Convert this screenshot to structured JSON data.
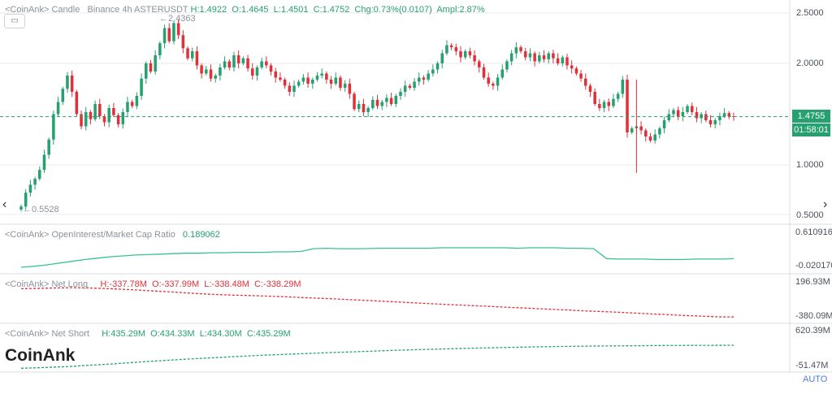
{
  "candle_header": {
    "source": "<CoinAnk> Candle",
    "symbol": "Binance 4h ASTERUSDT",
    "h": "H:1.4922",
    "o": "O:1.4645",
    "l": "L:1.4501",
    "c": "C:1.4752",
    "chg": "Chg:0.73%(0.0107)",
    "ampl": "Ampl:2.87%"
  },
  "price_axis": [
    "2.5000",
    "2.0000",
    "1.0000",
    "0.5000"
  ],
  "current_price": "1.4755",
  "countdown": "01:58:01",
  "high_marker": "←2.4363",
  "low_marker": "←0.5528",
  "oi_header": {
    "title": "<CoinAnk> OpenInterest/Market Cap Ratio",
    "value": "0.189062"
  },
  "oi_axis": [
    "0.610916",
    "-0.020170"
  ],
  "netlong_header": {
    "title": "<CoinAnk> Net Long",
    "h": "H:-337.78M",
    "o": "O:-337.99M",
    "l": "L:-338.48M",
    "c": "C:-338.29M"
  },
  "netlong_axis": [
    "196.93M",
    "-380.09M"
  ],
  "netshort_header": {
    "title": "<CoinAnk> Net Short",
    "h": "H:435.29M",
    "o": "O:434.33M",
    "l": "L:434.30M",
    "c": "C:435.29M"
  },
  "netshort_axis": [
    "620.39M",
    "-51.47M"
  ],
  "watermark": "CoinAnk",
  "auto_label": "AUTO",
  "colors": {
    "up": "#26a06f",
    "down": "#e0313b",
    "grid": "#e6e9ee",
    "oi": "#36c294"
  },
  "chart_data": [
    {
      "type": "candlestick",
      "title": "Binance 4h ASTERUSDT",
      "ylim": [
        0.5,
        2.5
      ],
      "closes": [
        0.58,
        0.72,
        0.8,
        0.86,
        0.95,
        1.1,
        1.25,
        1.5,
        1.62,
        1.75,
        1.88,
        1.72,
        1.5,
        1.38,
        1.52,
        1.45,
        1.6,
        1.48,
        1.42,
        1.56,
        1.49,
        1.4,
        1.52,
        1.62,
        1.58,
        1.68,
        1.85,
        2.0,
        1.92,
        2.08,
        2.2,
        2.35,
        2.22,
        2.4,
        2.28,
        2.15,
        2.05,
        2.12,
        1.98,
        1.9,
        1.94,
        1.85,
        1.88,
        1.96,
        2.02,
        1.96,
        2.08,
        2.0,
        2.05,
        1.95,
        1.88,
        1.96,
        2.02,
        1.98,
        1.92,
        1.86,
        1.84,
        1.78,
        1.72,
        1.78,
        1.82,
        1.86,
        1.8,
        1.84,
        1.88,
        1.9,
        1.84,
        1.8,
        1.86,
        1.76,
        1.8,
        1.7,
        1.55,
        1.6,
        1.52,
        1.56,
        1.64,
        1.58,
        1.62,
        1.66,
        1.6,
        1.68,
        1.72,
        1.78,
        1.76,
        1.82,
        1.86,
        1.84,
        1.9,
        1.94,
        2.0,
        2.1,
        2.18,
        2.16,
        2.12,
        2.06,
        2.12,
        2.08,
        2.02,
        1.96,
        1.86,
        1.8,
        1.78,
        1.86,
        1.94,
        2.02,
        2.1,
        2.16,
        2.12,
        2.06,
        2.1,
        2.02,
        2.08,
        2.04,
        2.1,
        2.05,
        2.0,
        2.06,
        1.98,
        1.95,
        1.9,
        1.85,
        1.78,
        1.72,
        1.6,
        1.56,
        1.62,
        1.58,
        1.65,
        1.7,
        1.84,
        1.32,
        1.36,
        1.38,
        1.34,
        1.28,
        1.24,
        1.3,
        1.36,
        1.44,
        1.5,
        1.54,
        1.48,
        1.52,
        1.58,
        1.52,
        1.46,
        1.5,
        1.44,
        1.4,
        1.44,
        1.48,
        1.51,
        1.48,
        1.4752
      ],
      "series_high": 2.4363,
      "series_low": 0.5528,
      "last": 1.4752
    },
    {
      "type": "line",
      "title": "OpenInterest/Market Cap Ratio",
      "ylim": [
        -0.02017,
        0.610916
      ],
      "values": [
        0.0,
        0.02,
        0.05,
        0.09,
        0.13,
        0.17,
        0.2,
        0.23,
        0.25,
        0.27,
        0.28,
        0.29,
        0.3,
        0.31,
        0.31,
        0.32,
        0.32,
        0.33,
        0.33,
        0.33,
        0.34,
        0.34,
        0.35,
        0.41,
        0.42,
        0.41,
        0.41,
        0.41,
        0.42,
        0.42,
        0.42,
        0.42,
        0.42,
        0.43,
        0.43,
        0.43,
        0.43,
        0.43,
        0.43,
        0.42,
        0.43,
        0.43,
        0.43,
        0.42,
        0.42,
        0.41,
        0.19,
        0.18,
        0.18,
        0.18,
        0.17,
        0.17,
        0.17,
        0.18,
        0.18,
        0.18,
        0.189
      ]
    },
    {
      "type": "line",
      "title": "Net Long",
      "ylim": [
        -380.09,
        196.93
      ],
      "values": [
        176,
        182,
        190,
        196,
        191,
        180,
        168,
        152,
        135,
        118,
        100,
        82,
        68,
        58,
        50,
        40,
        28,
        15,
        2,
        -10,
        -25,
        -40,
        -55,
        -70,
        -85,
        -100,
        -115,
        -128,
        -142,
        -156,
        -170,
        -185,
        -198,
        -212,
        -228,
        -240,
        -252,
        -268,
        -282,
        -296,
        -310,
        -323,
        -336,
        -338.29
      ]
    },
    {
      "type": "line",
      "title": "Net Short",
      "ylim": [
        -51.47,
        620.39
      ],
      "values": [
        -40,
        -25,
        -5,
        25,
        55,
        90,
        120,
        150,
        175,
        200,
        225,
        245,
        265,
        285,
        300,
        318,
        335,
        350,
        362,
        375,
        385,
        395,
        405,
        412,
        418,
        422,
        426,
        430,
        432,
        434,
        435.29
      ]
    }
  ]
}
